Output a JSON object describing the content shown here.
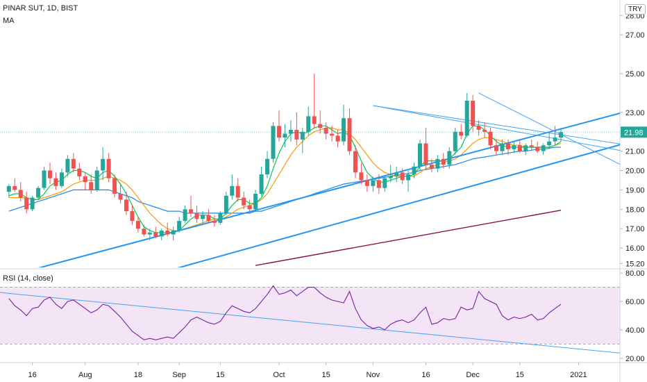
{
  "header": {
    "title": "PINAR SUT, 1D, BIST",
    "indicator": "MA",
    "currency": "TRY"
  },
  "rsi_panel": {
    "label": "RSI (14, close)"
  },
  "colors": {
    "up": "#26a69a",
    "down": "#ef5350",
    "trendline": "#2196f3",
    "thin_trend": "#42a5f5",
    "ma_fast": "#00c853",
    "ma_mid": "#ff9800",
    "ma_slow": "#1e88e5",
    "ma_long": "#880e4f",
    "rsi": "#7b1fa2",
    "rsi_band": "#f3e5f5",
    "last_price_badge": "#26a69a"
  },
  "chart_data": [
    {
      "type": "candlestick",
      "title": "PINAR SUT, 1D, BIST",
      "ylim": [
        15.0,
        28.8
      ],
      "y_ticks": [
        "28.00",
        "27.00",
        "25.00",
        "23.00",
        "21.00",
        "20.00",
        "19.00",
        "18.00",
        "17.00",
        "16.00",
        "15.20"
      ],
      "x_ticks": [
        "16",
        "Aug",
        "18",
        "Sep",
        "15",
        "Oct",
        "15",
        "Nov",
        "16",
        "Dec",
        "15",
        "2021"
      ],
      "last_price": "21.98",
      "candles": [
        [
          18.9,
          19.3,
          18.6,
          19.2
        ],
        [
          19.2,
          19.6,
          18.9,
          19.0
        ],
        [
          19.0,
          19.4,
          18.4,
          18.6
        ],
        [
          18.6,
          18.9,
          17.8,
          18.0
        ],
        [
          18.0,
          18.7,
          17.9,
          18.6
        ],
        [
          18.6,
          19.2,
          18.5,
          19.1
        ],
        [
          19.1,
          20.2,
          19.0,
          20.0
        ],
        [
          20.0,
          20.4,
          19.3,
          19.6
        ],
        [
          19.6,
          19.9,
          19.0,
          19.2
        ],
        [
          19.2,
          20.1,
          19.1,
          19.9
        ],
        [
          19.9,
          20.8,
          19.7,
          20.6
        ],
        [
          20.6,
          20.9,
          19.9,
          20.1
        ],
        [
          20.1,
          20.4,
          19.5,
          19.7
        ],
        [
          19.7,
          19.9,
          19.0,
          19.4
        ],
        [
          19.4,
          19.8,
          18.8,
          19.0
        ],
        [
          19.0,
          20.2,
          18.9,
          20.0
        ],
        [
          20.0,
          21.2,
          19.5,
          20.6
        ],
        [
          20.6,
          20.9,
          19.4,
          19.6
        ],
        [
          19.6,
          19.8,
          18.6,
          18.8
        ],
        [
          18.8,
          19.3,
          18.3,
          18.5
        ],
        [
          18.5,
          18.9,
          17.7,
          17.9
        ],
        [
          17.9,
          18.2,
          17.2,
          17.4
        ],
        [
          17.4,
          17.6,
          16.8,
          17.0
        ],
        [
          17.0,
          17.2,
          16.6,
          16.7
        ],
        [
          16.7,
          17.0,
          16.4,
          16.8
        ],
        [
          16.8,
          17.1,
          16.5,
          16.6
        ],
        [
          16.6,
          17.0,
          16.4,
          16.9
        ],
        [
          16.9,
          17.3,
          16.6,
          16.7
        ],
        [
          16.7,
          17.1,
          16.4,
          16.9
        ],
        [
          16.9,
          17.6,
          16.8,
          17.4
        ],
        [
          17.4,
          18.2,
          17.3,
          18.0
        ],
        [
          18.0,
          18.7,
          17.6,
          17.8
        ],
        [
          17.8,
          18.2,
          17.3,
          17.5
        ],
        [
          17.5,
          17.9,
          17.2,
          17.7
        ],
        [
          17.7,
          18.0,
          17.3,
          17.4
        ],
        [
          17.4,
          17.7,
          17.1,
          17.3
        ],
        [
          17.3,
          17.9,
          17.2,
          17.8
        ],
        [
          17.8,
          18.9,
          17.7,
          18.7
        ],
        [
          18.7,
          19.8,
          18.5,
          19.2
        ],
        [
          19.2,
          19.6,
          18.4,
          18.6
        ],
        [
          18.6,
          18.9,
          18.0,
          18.2
        ],
        [
          18.2,
          18.5,
          17.8,
          18.0
        ],
        [
          18.0,
          19.0,
          17.9,
          18.8
        ],
        [
          18.8,
          20.2,
          18.7,
          19.8
        ],
        [
          19.8,
          21.0,
          19.6,
          20.6
        ],
        [
          20.6,
          22.5,
          20.4,
          22.3
        ],
        [
          22.3,
          23.1,
          21.5,
          21.7
        ],
        [
          21.7,
          22.4,
          21.2,
          21.9
        ],
        [
          21.9,
          22.6,
          21.5,
          22.1
        ],
        [
          22.1,
          23.0,
          21.3,
          21.6
        ],
        [
          21.6,
          22.2,
          20.9,
          22.0
        ],
        [
          22.0,
          23.3,
          21.8,
          22.8
        ],
        [
          22.8,
          25.0,
          22.2,
          22.4
        ],
        [
          22.4,
          23.1,
          21.9,
          22.2
        ],
        [
          22.2,
          22.5,
          21.6,
          21.9
        ],
        [
          21.9,
          22.3,
          21.5,
          21.8
        ],
        [
          21.8,
          22.1,
          21.2,
          21.5
        ],
        [
          21.5,
          23.4,
          21.3,
          22.7
        ],
        [
          22.7,
          23.2,
          20.8,
          21.0
        ],
        [
          21.0,
          21.3,
          19.6,
          19.9
        ],
        [
          19.9,
          20.4,
          19.3,
          19.5
        ],
        [
          19.5,
          19.8,
          18.9,
          19.2
        ],
        [
          19.2,
          19.7,
          18.9,
          19.5
        ],
        [
          19.5,
          19.8,
          18.8,
          19.1
        ],
        [
          19.1,
          19.7,
          18.9,
          19.6
        ],
        [
          19.6,
          20.3,
          19.4,
          19.7
        ],
        [
          19.7,
          20.2,
          19.4,
          19.9
        ],
        [
          19.9,
          20.1,
          19.3,
          19.5
        ],
        [
          19.5,
          20.0,
          18.9,
          19.8
        ],
        [
          19.8,
          20.4,
          19.6,
          20.2
        ],
        [
          20.2,
          21.6,
          20.0,
          21.4
        ],
        [
          21.4,
          22.2,
          20.1,
          20.3
        ],
        [
          20.3,
          20.6,
          19.9,
          20.1
        ],
        [
          20.1,
          20.8,
          19.9,
          20.6
        ],
        [
          20.6,
          20.9,
          20.1,
          20.3
        ],
        [
          20.3,
          21.2,
          20.1,
          21.0
        ],
        [
          21.0,
          22.2,
          20.8,
          22.0
        ],
        [
          22.0,
          22.4,
          21.6,
          21.8
        ],
        [
          21.8,
          24.0,
          21.7,
          23.6
        ],
        [
          23.6,
          23.9,
          22.0,
          22.3
        ],
        [
          22.3,
          22.6,
          21.8,
          22.1
        ],
        [
          22.1,
          22.5,
          21.7,
          22.0
        ],
        [
          22.0,
          22.2,
          21.1,
          21.3
        ],
        [
          21.3,
          21.6,
          20.8,
          21.0
        ],
        [
          21.0,
          21.6,
          20.8,
          21.4
        ],
        [
          21.4,
          21.6,
          20.8,
          21.1
        ],
        [
          21.1,
          21.5,
          20.9,
          21.3
        ],
        [
          21.3,
          21.6,
          20.9,
          21.0
        ],
        [
          21.0,
          21.4,
          20.8,
          21.3
        ],
        [
          21.3,
          21.6,
          21.0,
          21.2
        ],
        [
          21.2,
          21.5,
          20.9,
          21.0
        ],
        [
          21.0,
          21.4,
          20.8,
          21.3
        ],
        [
          21.3,
          22.0,
          21.1,
          21.5
        ],
        [
          21.5,
          22.3,
          21.3,
          21.7
        ],
        [
          21.7,
          22.2,
          21.5,
          21.98
        ]
      ],
      "series": [
        {
          "values": [
            18.7,
            18.8,
            18.8,
            18.6,
            18.5,
            18.5,
            18.8,
            19.2,
            19.4,
            19.5,
            19.8,
            20.0,
            20.0,
            19.9,
            19.7,
            19.6,
            19.9,
            20.0,
            19.7,
            19.3,
            18.8,
            18.2,
            17.6,
            17.1,
            16.9,
            16.8,
            16.8,
            16.8,
            16.8,
            16.9,
            17.2,
            17.5,
            17.7,
            17.7,
            17.7,
            17.5,
            17.5,
            17.8,
            18.2,
            18.5,
            18.5,
            18.3,
            18.3,
            18.6,
            19.2,
            20.1,
            20.9,
            21.5,
            21.9,
            22.0,
            21.9,
            22.0,
            22.2,
            22.3,
            22.3,
            22.1,
            21.9,
            22.0,
            21.8,
            21.2,
            20.5,
            19.9,
            19.6,
            19.4,
            19.4,
            19.5,
            19.6,
            19.7,
            19.7,
            19.8,
            20.2,
            20.5,
            20.5,
            20.5,
            20.5,
            20.6,
            20.9,
            21.2,
            21.9,
            22.3,
            22.3,
            22.1,
            21.8,
            21.5,
            21.3,
            21.2,
            21.2,
            21.2,
            21.2,
            21.2,
            21.2,
            21.2,
            21.2,
            21.3,
            21.5
          ]
        },
        {
          "values": [
            18.6,
            18.6,
            18.6,
            18.6,
            18.5,
            18.5,
            18.6,
            18.7,
            18.8,
            18.9,
            19.1,
            19.3,
            19.4,
            19.5,
            19.5,
            19.5,
            19.6,
            19.7,
            19.6,
            19.5,
            19.3,
            19.0,
            18.6,
            18.2,
            17.8,
            17.5,
            17.2,
            17.0,
            16.9,
            16.9,
            17.0,
            17.1,
            17.2,
            17.3,
            17.4,
            17.5,
            17.5,
            17.6,
            17.8,
            18.0,
            18.1,
            18.2,
            18.3,
            18.5,
            18.8,
            19.3,
            19.8,
            20.3,
            20.8,
            21.2,
            21.5,
            21.8,
            22.0,
            22.1,
            22.2,
            22.2,
            22.1,
            22.1,
            21.9,
            21.6,
            21.2,
            20.8,
            20.4,
            20.1,
            19.9,
            19.8,
            19.7,
            19.7,
            19.7,
            19.7,
            19.9,
            20.1,
            20.2,
            20.3,
            20.4,
            20.5,
            20.6,
            20.8,
            21.1,
            21.4,
            21.6,
            21.7,
            21.7,
            21.6,
            21.5,
            21.4,
            21.3,
            21.3,
            21.2,
            21.2,
            21.2,
            21.2,
            21.2,
            21.3,
            21.4
          ]
        },
        {
          "values": [
            17.9,
            18.0,
            18.1,
            18.2,
            18.3,
            18.4,
            18.5,
            18.6,
            18.7,
            18.8,
            18.9,
            19.0,
            19.0,
            19.0,
            19.0,
            19.0,
            19.0,
            19.0,
            18.9,
            18.8,
            18.7,
            18.6,
            18.4,
            18.3,
            18.2,
            18.1,
            18.0,
            17.9,
            17.9,
            17.9,
            17.8,
            17.8,
            17.8,
            17.8,
            17.8,
            17.8,
            17.8,
            17.8,
            17.8,
            17.8,
            17.8,
            17.8,
            17.9,
            17.9,
            18.0,
            18.1,
            18.2,
            18.3,
            18.4,
            18.5,
            18.6,
            18.7,
            18.8,
            18.9,
            19.0,
            19.1,
            19.2,
            19.3,
            19.35,
            19.4,
            19.45,
            19.5,
            19.55,
            19.6,
            19.65,
            19.7,
            19.75,
            19.8,
            19.85,
            19.9,
            20.0,
            20.05,
            20.1,
            20.15,
            20.2,
            20.25,
            20.3,
            20.4,
            20.5,
            20.6,
            20.65,
            20.7,
            20.75,
            20.8,
            20.85,
            20.9,
            20.95,
            21.0,
            21.0,
            21.05,
            21.1,
            21.1,
            21.15,
            21.2,
            21.2
          ]
        },
        {
          "x_range": [
            42,
            94
          ],
          "values": [
            15.1,
            17.95
          ]
        }
      ],
      "trendlines": [
        {
          "kind": "channel",
          "from": [
            -2,
            14.4
          ],
          "to": [
            112,
            23.6
          ]
        },
        {
          "kind": "channel",
          "from": [
            22,
            14.4
          ],
          "to": [
            112,
            22.0
          ]
        },
        {
          "kind": "thin",
          "from": [
            62,
            23.35
          ],
          "to": [
            112,
            20.6
          ]
        },
        {
          "kind": "thin",
          "from": [
            62,
            23.35
          ],
          "to": [
            112,
            21.0
          ]
        },
        {
          "kind": "thin",
          "from": [
            80,
            24.0
          ],
          "to": [
            112,
            19.1
          ]
        }
      ]
    },
    {
      "type": "line",
      "title": "RSI (14, close)",
      "ylim": [
        17,
        82
      ],
      "y_ticks": [
        "80.00",
        "60.00",
        "40.00",
        "20.00"
      ],
      "bands": [
        30,
        70
      ],
      "values": [
        62,
        57,
        54,
        50,
        55,
        56,
        61,
        63,
        58,
        55,
        60,
        61,
        58,
        55,
        52,
        54,
        58,
        57,
        53,
        49,
        44,
        39,
        36,
        33,
        34,
        33,
        34,
        35,
        34,
        38,
        42,
        47,
        49,
        47,
        45,
        44,
        46,
        52,
        57,
        55,
        53,
        52,
        55,
        60,
        65,
        71,
        65,
        66,
        68,
        64,
        67,
        70,
        70,
        66,
        63,
        61,
        60,
        59,
        67,
        55,
        47,
        43,
        41,
        42,
        40,
        44,
        46,
        47,
        45,
        47,
        52,
        56,
        44,
        45,
        48,
        47,
        48,
        56,
        54,
        55,
        67,
        62,
        60,
        58,
        50,
        47,
        49,
        48,
        49,
        51,
        47,
        48,
        52,
        55,
        58
      ],
      "trendline": {
        "from": [
          -2,
          66.5
        ],
        "to": [
          112,
          20.5
        ]
      }
    }
  ]
}
